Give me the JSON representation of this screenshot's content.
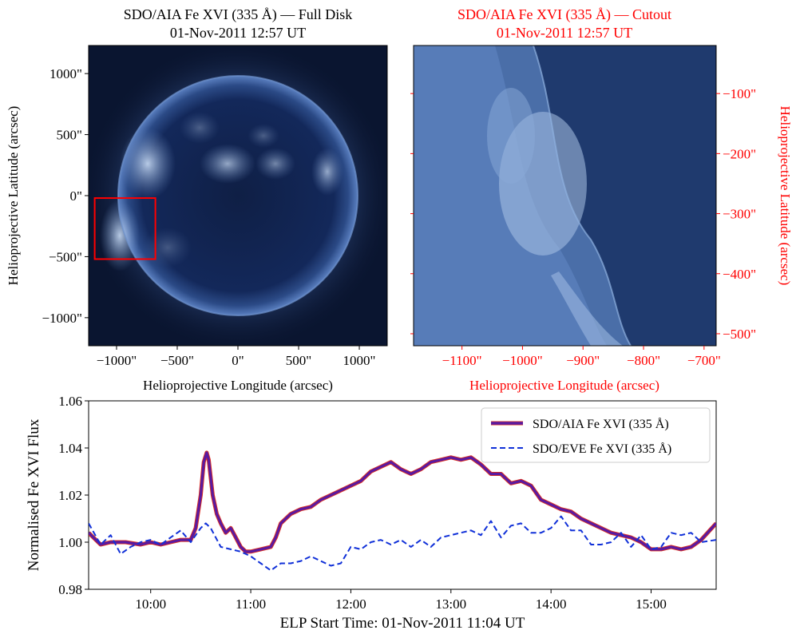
{
  "colors": {
    "black": "#000000",
    "red": "#ff0000",
    "aia_line": "#5a1aa0",
    "aia_edge": "#e0301e",
    "eve_line": "#1030d8",
    "disk_bg": "#0a1530"
  },
  "chart_data": [
    {
      "type": "image",
      "title": "SDO/AIA Fe XVI (335 Å) — Full Disk",
      "subtitle": "01-Nov-2011 12:57 UT",
      "xlabel": "Helioprojective Longitude (arcsec)",
      "ylabel": "Helioprojective Latitude (arcsec)",
      "xlim": [
        -1230,
        1230
      ],
      "ylim": [
        -1230,
        1230
      ],
      "xticks": [
        -1000,
        -500,
        0,
        500,
        1000
      ],
      "xtick_labels": [
        "−1000\"",
        "−500\"",
        "0\"",
        "500\"",
        "1000\""
      ],
      "yticks": [
        1000,
        500,
        0,
        -500,
        -1000
      ],
      "ytick_labels": [
        "1000\"",
        "500\"",
        "0\"",
        "−500\"",
        "−1000\""
      ],
      "cutout_box": {
        "x0": -1180,
        "x1": -680,
        "y0": -520,
        "y1": -20
      }
    },
    {
      "type": "image",
      "title": "SDO/AIA Fe XVI (335 Å) — Cutout",
      "subtitle": "01-Nov-2011 12:57 UT",
      "xlabel": "Helioprojective Longitude (arcsec)",
      "ylabel": "Helioprojective Latitude (arcsec)",
      "xlim": [
        -1180,
        -680
      ],
      "ylim": [
        -520,
        -20
      ],
      "xticks": [
        -1100,
        -1000,
        -900,
        -800,
        -700
      ],
      "xtick_labels": [
        "−1100\"",
        "−1000\"",
        "−900\"",
        "−800\"",
        "−700\""
      ],
      "yticks": [
        -100,
        -200,
        -300,
        -400,
        -500
      ],
      "ytick_labels": [
        "−100\"",
        "−200\"",
        "−300\"",
        "−400\"",
        "−500\""
      ]
    },
    {
      "type": "line",
      "xlabel": "ELP Start Time: 01-Nov-2011 11:04 UT",
      "ylabel": "Normalised Fe XVI Flux",
      "xlim": [
        9.38,
        15.65
      ],
      "ylim": [
        0.98,
        1.06
      ],
      "xticks": [
        10,
        11,
        12,
        13,
        14,
        15
      ],
      "xtick_labels": [
        "10:00",
        "11:00",
        "12:00",
        "13:00",
        "14:00",
        "15:00"
      ],
      "yticks": [
        0.98,
        1.0,
        1.02,
        1.04,
        1.06
      ],
      "ytick_labels": [
        "0.98",
        "1.00",
        "1.02",
        "1.04",
        "1.06"
      ],
      "legend": "top-right",
      "series": [
        {
          "name": "SDO/AIA Fe XVI (335 Å)",
          "style": "solid",
          "x": [
            9.38,
            9.5,
            9.6,
            9.75,
            9.9,
            10.0,
            10.1,
            10.2,
            10.3,
            10.4,
            10.45,
            10.5,
            10.53,
            10.56,
            10.58,
            10.62,
            10.66,
            10.7,
            10.75,
            10.8,
            10.85,
            10.9,
            10.95,
            11.0,
            11.1,
            11.2,
            11.25,
            11.3,
            11.4,
            11.5,
            11.6,
            11.7,
            11.8,
            11.9,
            12.0,
            12.1,
            12.2,
            12.3,
            12.4,
            12.5,
            12.6,
            12.7,
            12.8,
            12.9,
            13.0,
            13.1,
            13.2,
            13.3,
            13.4,
            13.5,
            13.6,
            13.7,
            13.8,
            13.9,
            14.0,
            14.1,
            14.2,
            14.3,
            14.4,
            14.5,
            14.6,
            14.7,
            14.8,
            14.9,
            15.0,
            15.1,
            15.2,
            15.3,
            15.4,
            15.5,
            15.65
          ],
          "y": [
            1.004,
            0.999,
            1.0,
            1.0,
            0.999,
            1.0,
            0.999,
            1.0,
            1.001,
            1.001,
            1.006,
            1.02,
            1.034,
            1.038,
            1.035,
            1.02,
            1.012,
            1.008,
            1.004,
            1.006,
            1.002,
            0.998,
            0.996,
            0.996,
            0.997,
            0.998,
            1.002,
            1.008,
            1.012,
            1.014,
            1.015,
            1.018,
            1.02,
            1.022,
            1.024,
            1.026,
            1.03,
            1.032,
            1.034,
            1.031,
            1.029,
            1.031,
            1.034,
            1.035,
            1.036,
            1.035,
            1.036,
            1.033,
            1.029,
            1.029,
            1.025,
            1.026,
            1.024,
            1.018,
            1.016,
            1.014,
            1.013,
            1.01,
            1.008,
            1.006,
            1.004,
            1.003,
            1.002,
            1.0,
            0.997,
            0.997,
            0.998,
            0.997,
            0.998,
            1.001,
            1.008
          ]
        },
        {
          "name": "SDO/EVE Fe XVI (335 Å)",
          "style": "dashed",
          "x": [
            9.38,
            9.5,
            9.6,
            9.7,
            9.8,
            9.9,
            10.0,
            10.1,
            10.2,
            10.3,
            10.4,
            10.5,
            10.55,
            10.6,
            10.7,
            10.8,
            10.9,
            11.0,
            11.1,
            11.2,
            11.3,
            11.4,
            11.5,
            11.6,
            11.7,
            11.8,
            11.9,
            12.0,
            12.1,
            12.2,
            12.3,
            12.4,
            12.5,
            12.6,
            12.7,
            12.8,
            12.9,
            13.0,
            13.1,
            13.2,
            13.3,
            13.4,
            13.5,
            13.6,
            13.7,
            13.8,
            13.9,
            14.0,
            14.1,
            14.2,
            14.3,
            14.4,
            14.5,
            14.6,
            14.7,
            14.8,
            14.9,
            15.0,
            15.1,
            15.2,
            15.3,
            15.4,
            15.5,
            15.65
          ],
          "y": [
            1.008,
            0.999,
            1.003,
            0.995,
            0.998,
            1.0,
            1.001,
            0.999,
            1.002,
            1.005,
            1.0,
            1.006,
            1.008,
            1.006,
            0.998,
            0.997,
            0.996,
            0.994,
            0.991,
            0.988,
            0.991,
            0.991,
            0.992,
            0.994,
            0.992,
            0.99,
            0.991,
            0.998,
            0.997,
            1.0,
            1.001,
            0.999,
            1.001,
            0.998,
            1.001,
            0.998,
            1.002,
            1.003,
            1.004,
            1.005,
            1.003,
            1.009,
            1.002,
            1.007,
            1.008,
            1.004,
            1.004,
            1.006,
            1.011,
            1.005,
            1.005,
            0.999,
            0.999,
            1.0,
            1.004,
            0.998,
            1.003,
            0.997,
            0.998,
            1.004,
            1.003,
            1.004,
            1.0,
            1.001
          ]
        }
      ]
    }
  ]
}
